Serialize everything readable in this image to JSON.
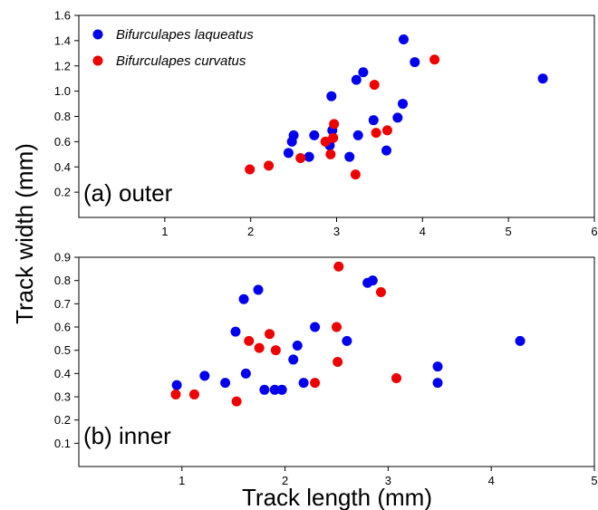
{
  "figure": {
    "ylabel": "Track width (mm)",
    "xlabel": "Track length (mm)"
  },
  "legend": {
    "items": [
      {
        "label": "Bifurculapes laqueatus",
        "color": "#0000ee"
      },
      {
        "label": "Bifurculapes curvatus",
        "color": "#ee0000"
      }
    ]
  },
  "chart_data": [
    {
      "type": "scatter",
      "panel_label": "(a)    outer",
      "xlim": [
        0,
        6
      ],
      "ylim": [
        0,
        1.6
      ],
      "xticks": [
        1,
        2,
        3,
        4,
        5,
        6
      ],
      "yticks": [
        0.2,
        0.4,
        0.6,
        0.8,
        1.0,
        1.2,
        1.4,
        1.6
      ],
      "ytick_labels": [
        "0.2",
        "0.4",
        "0.6",
        "0.8",
        "1.0",
        "1.2",
        "1.4",
        "1.6"
      ],
      "series": [
        {
          "name": "Bifurculapes laqueatus",
          "color": "#0000ee",
          "points": [
            [
              2.44,
              0.51
            ],
            [
              2.48,
              0.6
            ],
            [
              2.5,
              0.65
            ],
            [
              2.68,
              0.48
            ],
            [
              2.74,
              0.65
            ],
            [
              2.92,
              0.57
            ],
            [
              2.94,
              0.96
            ],
            [
              2.95,
              0.69
            ],
            [
              3.15,
              0.48
            ],
            [
              3.23,
              1.09
            ],
            [
              3.25,
              0.65
            ],
            [
              3.31,
              1.15
            ],
            [
              3.43,
              0.77
            ],
            [
              3.58,
              0.53
            ],
            [
              3.71,
              0.79
            ],
            [
              3.77,
              0.9
            ],
            [
              3.78,
              1.41
            ],
            [
              3.91,
              1.23
            ],
            [
              5.4,
              1.1
            ]
          ]
        },
        {
          "name": "Bifurculapes curvatus",
          "color": "#ee0000",
          "points": [
            [
              1.99,
              0.38
            ],
            [
              2.21,
              0.41
            ],
            [
              2.58,
              0.47
            ],
            [
              2.87,
              0.6
            ],
            [
              2.93,
              0.5
            ],
            [
              2.96,
              0.63
            ],
            [
              2.97,
              0.74
            ],
            [
              3.22,
              0.34
            ],
            [
              3.44,
              1.05
            ],
            [
              3.46,
              0.67
            ],
            [
              3.59,
              0.69
            ],
            [
              4.14,
              1.25
            ]
          ]
        }
      ]
    },
    {
      "type": "scatter",
      "panel_label": "(b)    inner",
      "xlim": [
        0,
        5
      ],
      "ylim": [
        0,
        0.9
      ],
      "xticks": [
        1,
        2,
        3,
        4,
        5
      ],
      "yticks": [
        0.1,
        0.2,
        0.3,
        0.4,
        0.5,
        0.6,
        0.7,
        0.8,
        0.9
      ],
      "ytick_labels": [
        "0.1",
        "0.2",
        "0.3",
        "0.4",
        "0.5",
        "0.6",
        "0.7",
        "0.8",
        "0.9"
      ],
      "series": [
        {
          "name": "Bifurculapes laqueatus",
          "color": "#0000ee",
          "points": [
            [
              0.95,
              0.35
            ],
            [
              1.22,
              0.39
            ],
            [
              1.42,
              0.36
            ],
            [
              1.52,
              0.58
            ],
            [
              1.6,
              0.72
            ],
            [
              1.62,
              0.4
            ],
            [
              1.74,
              0.76
            ],
            [
              1.8,
              0.33
            ],
            [
              1.9,
              0.33
            ],
            [
              1.97,
              0.33
            ],
            [
              2.08,
              0.46
            ],
            [
              2.12,
              0.52
            ],
            [
              2.18,
              0.36
            ],
            [
              2.29,
              0.6
            ],
            [
              2.6,
              0.54
            ],
            [
              2.8,
              0.79
            ],
            [
              2.85,
              0.8
            ],
            [
              3.48,
              0.43
            ],
            [
              3.48,
              0.36
            ],
            [
              4.28,
              0.54
            ]
          ]
        },
        {
          "name": "Bifurculapes curvatus",
          "color": "#ee0000",
          "points": [
            [
              0.94,
              0.31
            ],
            [
              1.12,
              0.31
            ],
            [
              1.53,
              0.28
            ],
            [
              1.65,
              0.54
            ],
            [
              1.75,
              0.51
            ],
            [
              1.85,
              0.57
            ],
            [
              1.91,
              0.5
            ],
            [
              2.29,
              0.36
            ],
            [
              2.5,
              0.6
            ],
            [
              2.51,
              0.45
            ],
            [
              2.52,
              0.86
            ],
            [
              2.93,
              0.75
            ],
            [
              3.08,
              0.38
            ]
          ]
        }
      ]
    }
  ]
}
